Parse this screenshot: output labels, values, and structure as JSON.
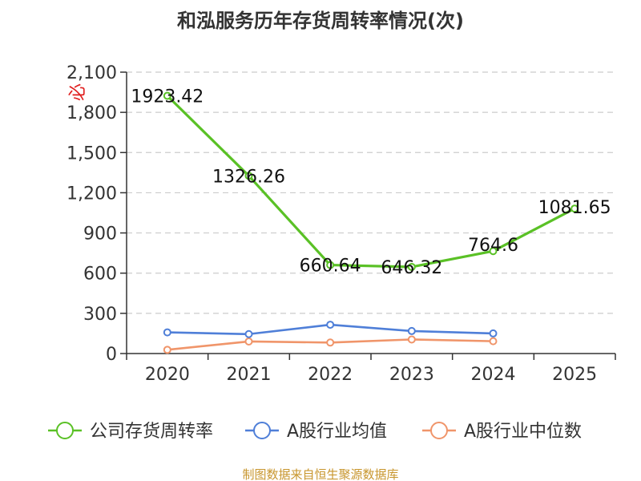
{
  "chart_data": {
    "type": "line",
    "title": "和泓服务历年存货周转率情况(次)",
    "categories": [
      "2020",
      "2021",
      "2022",
      "2023",
      "2024",
      "2025"
    ],
    "ylim": [
      0,
      2100
    ],
    "yticks": [
      0,
      300,
      600,
      900,
      1200,
      1500,
      1800,
      2100
    ],
    "ytick_labels": [
      "0",
      "300",
      "600",
      "900",
      "1,200",
      "1,500",
      "1,800",
      "2,100"
    ],
    "grid": true,
    "legend_position": "bottom",
    "series": [
      {
        "name": "公司存货周转率",
        "color": "#5ac126",
        "values": [
          1923.42,
          1326.26,
          660.64,
          646.32,
          764.6,
          1081.65
        ],
        "labels": [
          "1923.42",
          "1326.26",
          "660.64",
          "646.32",
          "764.6",
          "1081.65"
        ]
      },
      {
        "name": "A股行业均值",
        "color": "#4f7fd8",
        "values": [
          158,
          145,
          215,
          168,
          150,
          null
        ],
        "labels": []
      },
      {
        "name": "A股行业中位数",
        "color": "#f0956a",
        "values": [
          28,
          90,
          82,
          105,
          92,
          null
        ],
        "labels": []
      }
    ]
  },
  "watermark": "必",
  "source": "制图数据来自恒生聚源数据库"
}
